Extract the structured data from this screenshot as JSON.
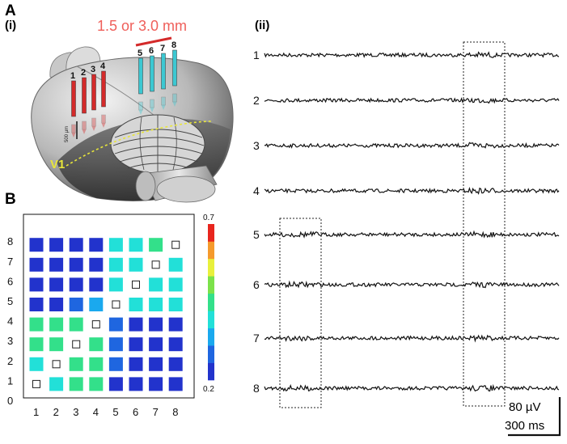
{
  "panels": {
    "a_label": "A",
    "a_i_label": "(i)",
    "a_ii_label": "(ii)",
    "b_label": "B"
  },
  "brain": {
    "spacing_label": "1.5 or 3.0 mm",
    "depth_label": "500 µm",
    "area_label": "V1",
    "electrode_labels": [
      "1",
      "2",
      "3",
      "4",
      "5",
      "6",
      "7",
      "8"
    ],
    "colors": {
      "group1": "#d42a2a",
      "group2": "#3cc8d2",
      "spacing_label": "#ef5f5a",
      "area_line": "#e8e63a"
    }
  },
  "traces": {
    "labels": [
      "1",
      "2",
      "3",
      "4",
      "5",
      "6",
      "7",
      "8"
    ],
    "scale_amplitude": "80 µV",
    "scale_time": "300 ms"
  },
  "chart_data": {
    "type": "heatmap",
    "title": "",
    "xlabel": "",
    "ylabel": "",
    "x_categories": [
      "1",
      "2",
      "3",
      "4",
      "5",
      "6",
      "7",
      "8"
    ],
    "y_categories": [
      "1",
      "2",
      "3",
      "4",
      "5",
      "6",
      "7",
      "8"
    ],
    "y_axis_ticks": [
      "0",
      "1",
      "2",
      "3",
      "4",
      "5",
      "6",
      "7",
      "8"
    ],
    "colorbar": {
      "min": 0.2,
      "max": 0.7,
      "min_label": "0.2",
      "max_label": "0.7"
    },
    "colorscale": [
      "#2233cc",
      "#1f66e0",
      "#1aa9ee",
      "#22e0d8",
      "#33e08a",
      "#7ce24a",
      "#e8f03c",
      "#f59a2c",
      "#e8261e"
    ],
    "diagonal": "empty",
    "values": [
      [
        null,
        0.42,
        0.45,
        0.45,
        0.25,
        0.25,
        0.25,
        0.25
      ],
      [
        0.42,
        null,
        0.45,
        0.43,
        0.3,
        0.25,
        0.25,
        0.25
      ],
      [
        0.45,
        0.45,
        null,
        0.45,
        0.3,
        0.25,
        0.25,
        0.25
      ],
      [
        0.45,
        0.43,
        0.45,
        null,
        0.3,
        0.25,
        0.25,
        0.25
      ],
      [
        0.25,
        0.25,
        0.3,
        0.32,
        null,
        0.4,
        0.38,
        0.38
      ],
      [
        0.25,
        0.25,
        0.25,
        0.25,
        0.4,
        null,
        0.38,
        0.38
      ],
      [
        0.25,
        0.25,
        0.25,
        0.25,
        0.38,
        0.38,
        null,
        0.42
      ],
      [
        0.25,
        0.25,
        0.25,
        0.25,
        0.38,
        0.38,
        0.45,
        null
      ]
    ]
  }
}
